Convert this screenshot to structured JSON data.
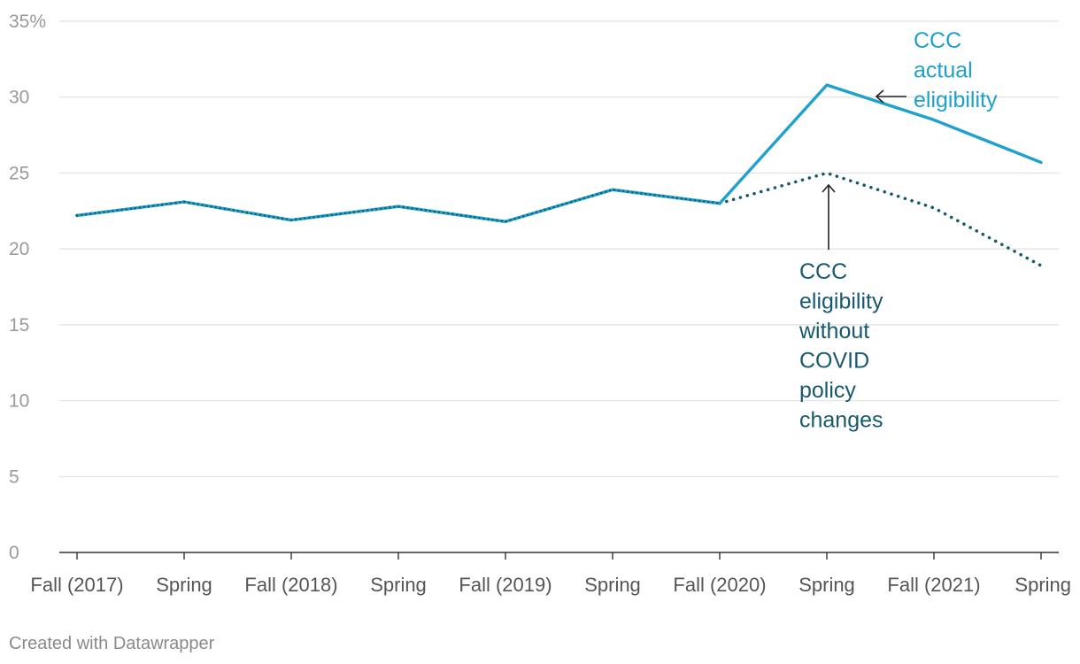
{
  "chart_data": {
    "type": "line",
    "title": "",
    "xlabel": "",
    "ylabel": "",
    "ylim": [
      0,
      35
    ],
    "yticks": [
      0,
      5,
      10,
      15,
      20,
      25,
      30,
      35
    ],
    "ytick_suffix_top": "%",
    "grid": true,
    "categories": [
      "Fall (2017)",
      "Spring",
      "Fall (2018)",
      "Spring",
      "Fall (2019)",
      "Spring",
      "Fall (2020)",
      "Spring",
      "Fall (2021)",
      "Spring"
    ],
    "series": [
      {
        "name": "CCC actual eligibility",
        "color": "#1ea1cc",
        "style": "solid",
        "values": [
          22.2,
          23.1,
          21.9,
          22.8,
          21.8,
          23.9,
          23.0,
          30.8,
          28.5,
          25.7
        ]
      },
      {
        "name": "CCC eligibility without COVID policy changes",
        "color": "#17596e",
        "style": "dotted",
        "values": [
          22.2,
          23.1,
          21.9,
          22.8,
          21.8,
          23.9,
          23.0,
          25.0,
          22.7,
          18.9
        ]
      }
    ],
    "annotations": [
      {
        "series": 0,
        "lines": [
          "CCC",
          "actual",
          "eligibility"
        ]
      },
      {
        "series": 1,
        "lines": [
          "CCC",
          "eligibility",
          "without",
          "COVID",
          "policy",
          "changes"
        ]
      }
    ],
    "credit": "Created with Datawrapper"
  }
}
